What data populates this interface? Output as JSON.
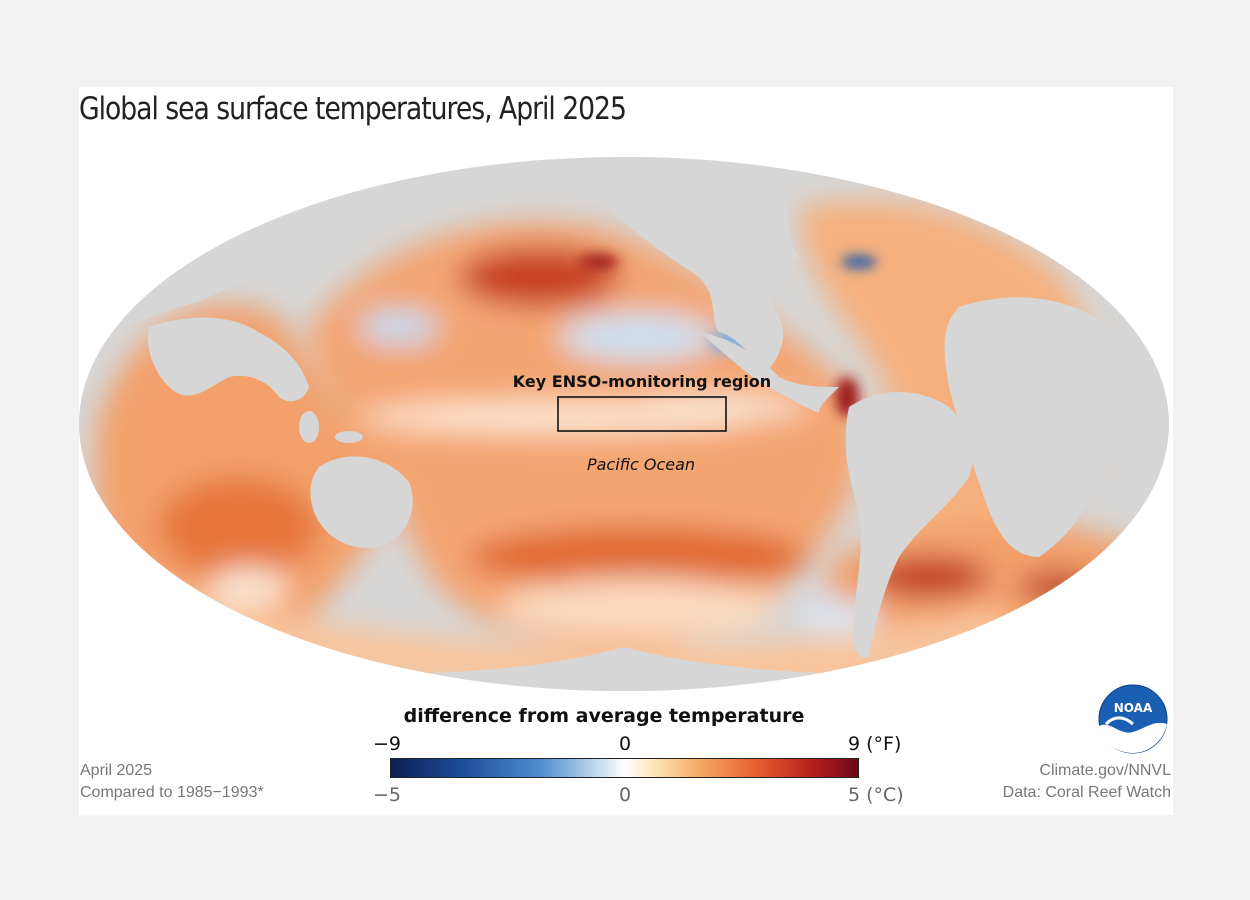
{
  "title": "Global sea surface temperatures, April 2025",
  "map": {
    "enso_region_label": "Key ENSO-monitoring region",
    "ocean_label": "Pacific Ocean",
    "land_color": "#d6d6d6",
    "warm_color": "#f39a5b",
    "hot_color": "#b82a1f",
    "cool_color": "#8fb8e0"
  },
  "legend": {
    "title": "difference from average temperature",
    "fahrenheit_ticks": [
      "−9",
      "0",
      "9 (°F)"
    ],
    "celsius_ticks": [
      "−5",
      "0",
      "5 (°C)"
    ],
    "colors": [
      "#0b1f55",
      "#4f8dd0",
      "#ffffff",
      "#f6a864",
      "#b81f1f",
      "#6b0a14"
    ]
  },
  "footer": {
    "left_line1": "April 2025",
    "left_line2": "Compared to 1985−1993*",
    "right_line1": "Climate.gov/NNVL",
    "right_line2": "Data: Coral Reef Watch"
  },
  "logo_text": "NOAA"
}
